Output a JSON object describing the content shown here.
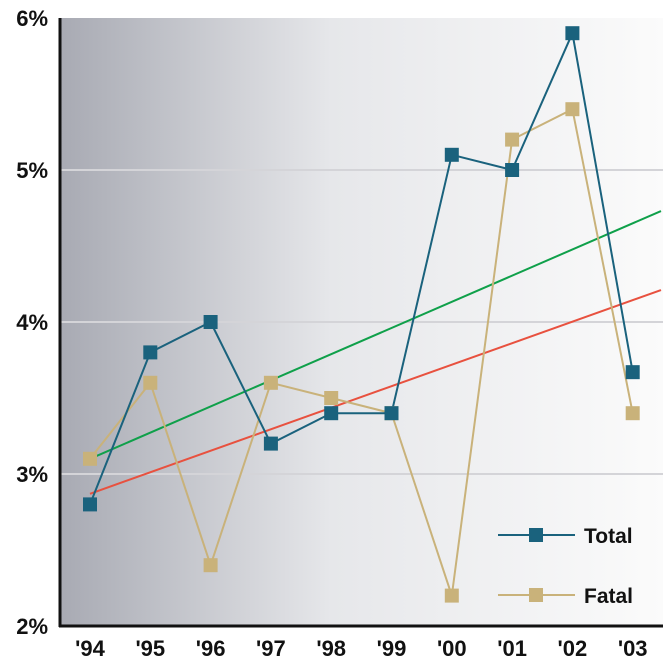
{
  "chart_data": {
    "type": "line",
    "title": "",
    "xlabel": "",
    "ylabel": "",
    "categories": [
      "'94",
      "'95",
      "'96",
      "'97",
      "'98",
      "'99",
      "'00",
      "'01",
      "'02",
      "'03"
    ],
    "ylim": [
      2,
      6
    ],
    "yticks": [
      2,
      3,
      4,
      5,
      6
    ],
    "ytick_labels": [
      "2%",
      "3%",
      "4%",
      "5%",
      "6%"
    ],
    "grid": "horizontal",
    "legend_position": "bottom-right",
    "series": [
      {
        "name": "Total",
        "color": "#1a627d",
        "marker": "square",
        "values": [
          2.8,
          3.8,
          4.0,
          3.2,
          3.4,
          3.4,
          5.1,
          5.0,
          5.9,
          3.67
        ]
      },
      {
        "name": "Fatal",
        "color": "#c9b27a",
        "marker": "square",
        "values": [
          3.1,
          3.6,
          2.4,
          3.6,
          3.5,
          3.4,
          2.2,
          5.2,
          5.4,
          3.4
        ]
      }
    ],
    "trendlines": [
      {
        "color": "#0fa04a",
        "start": 3.1,
        "end": 4.73
      },
      {
        "color": "#e8513f",
        "start": 2.87,
        "end": 4.21
      }
    ]
  }
}
